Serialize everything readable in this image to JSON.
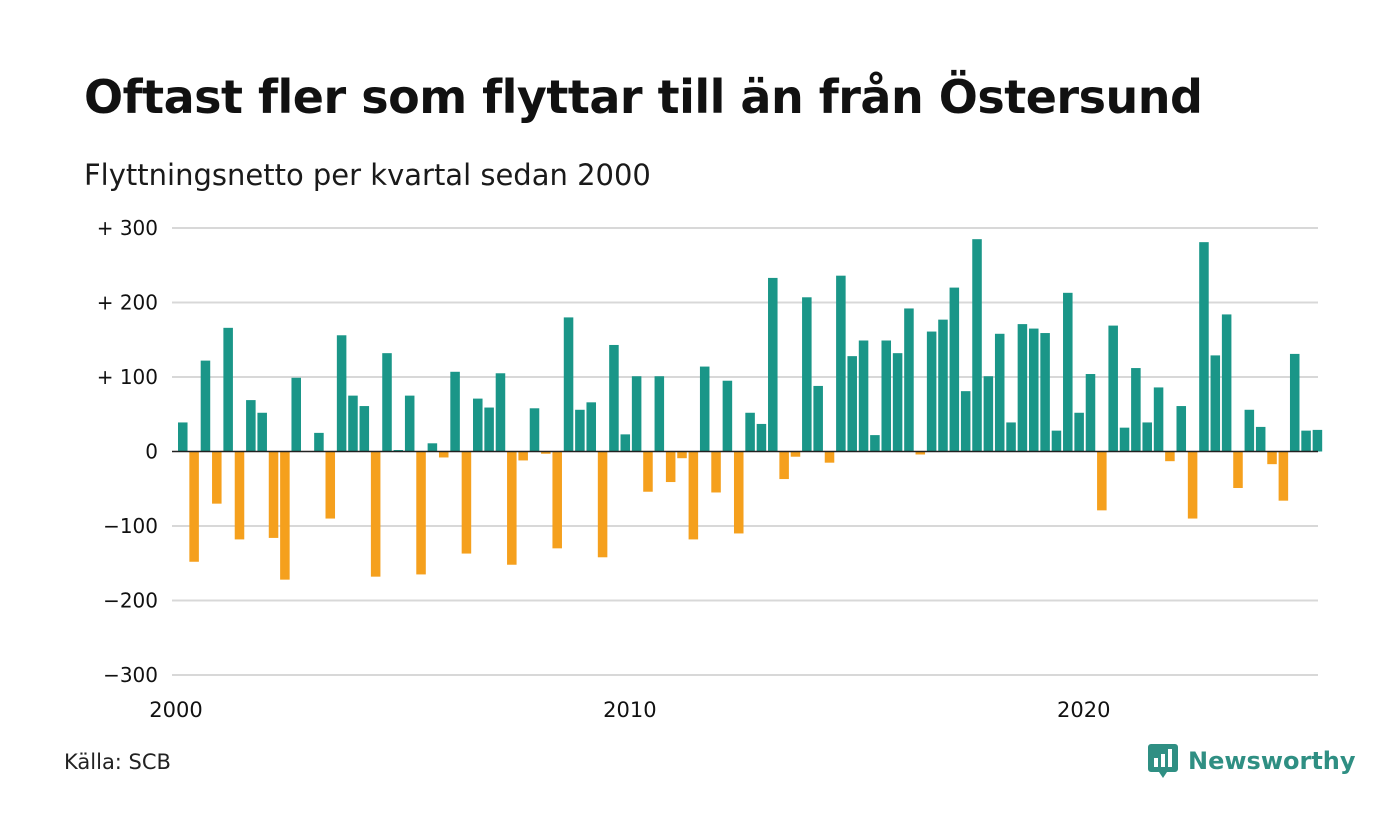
{
  "title": "Oftast fler som flyttar till än från Östersund",
  "subtitle": "Flyttningsnetto per kvartal sedan 2000",
  "source": "Källa: SCB",
  "brand": "Newsworthy",
  "colors": {
    "positive": "#1a9688",
    "negative": "#f5a01d",
    "grid": "#d8d8d8",
    "zero_line": "#222222",
    "brand": "#2f8f83"
  },
  "chart_data": {
    "type": "bar",
    "x_start": "2000 Q1",
    "x_ticks": [
      "2000",
      "2010",
      "2020"
    ],
    "y_ticks": [
      "+ 300",
      "+ 200",
      "+ 100",
      "0",
      "−100",
      "−200",
      "−300"
    ],
    "ylim": [
      -300,
      300
    ],
    "grid": true,
    "values": [
      39,
      -148,
      122,
      -70,
      166,
      -118,
      69,
      52,
      -116,
      -172,
      99,
      0,
      25,
      -90,
      156,
      75,
      61,
      -168,
      132,
      2,
      75,
      -165,
      11,
      -8,
      107,
      -137,
      71,
      59,
      105,
      -152,
      -12,
      58,
      -3,
      -130,
      180,
      56,
      66,
      -142,
      143,
      23,
      101,
      -54,
      101,
      -41,
      -9,
      -118,
      114,
      -55,
      95,
      -110,
      52,
      37,
      233,
      -37,
      -7,
      207,
      88,
      -15,
      236,
      128,
      149,
      22,
      149,
      132,
      192,
      -4,
      161,
      177,
      220,
      81,
      285,
      101,
      158,
      39,
      171,
      165,
      159,
      28,
      213,
      52,
      104,
      -79,
      169,
      32,
      112,
      39,
      86,
      -13,
      61,
      -90,
      281,
      129,
      184,
      -49,
      56,
      33,
      -17,
      -66,
      131,
      28,
      29
    ]
  }
}
